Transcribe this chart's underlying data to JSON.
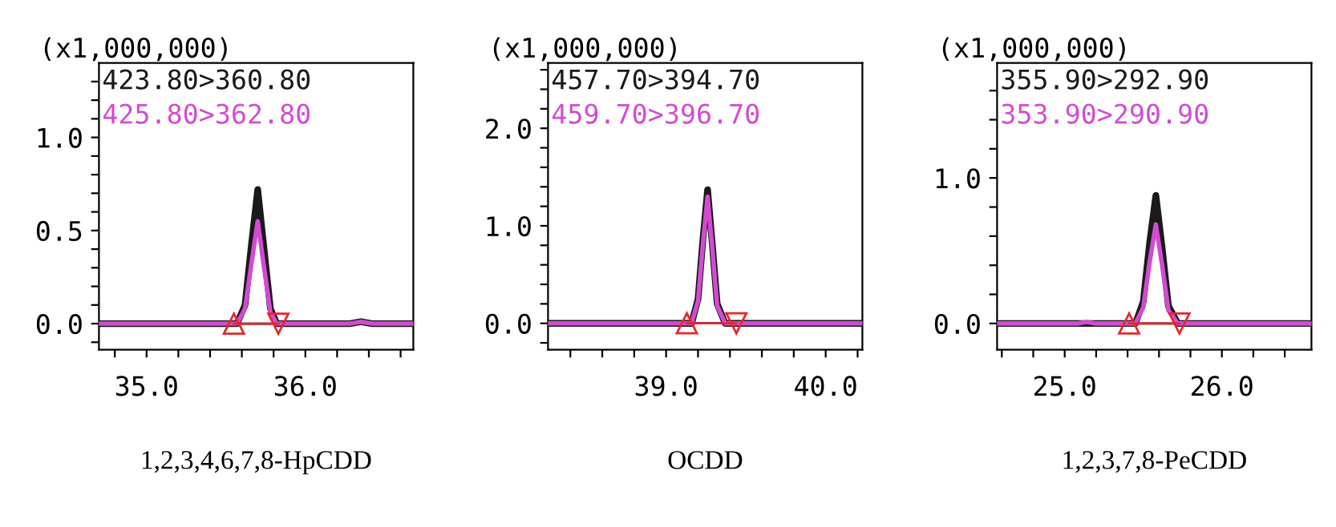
{
  "chart_data": [
    {
      "type": "line",
      "xlabel": "1,2,3,4,6,7,8-HpCDD",
      "ylabel": "(x1,000,000)",
      "legend": "top left",
      "grid": false,
      "xlim": [
        34.7,
        36.68
      ],
      "ylim": [
        -0.14,
        1.4
      ],
      "xticks": [
        {
          "value": 34.8,
          "label": null
        },
        {
          "value": 35.0,
          "label": "35.0"
        },
        {
          "value": 35.2,
          "label": null
        },
        {
          "value": 35.4,
          "label": null
        },
        {
          "value": 35.6,
          "label": null
        },
        {
          "value": 35.8,
          "label": null
        },
        {
          "value": 36.0,
          "label": "36.0"
        },
        {
          "value": 36.2,
          "label": null
        },
        {
          "value": 36.4,
          "label": null
        },
        {
          "value": 36.6,
          "label": null
        }
      ],
      "yticks": [
        {
          "value": -0.1,
          "label": null
        },
        {
          "value": 0.0,
          "label": "0.0"
        },
        {
          "value": 0.1,
          "label": null
        },
        {
          "value": 0.2,
          "label": null
        },
        {
          "value": 0.3,
          "label": null
        },
        {
          "value": 0.4,
          "label": null
        },
        {
          "value": 0.5,
          "label": "0.5"
        },
        {
          "value": 0.6,
          "label": null
        },
        {
          "value": 0.7,
          "label": null
        },
        {
          "value": 0.8,
          "label": null
        },
        {
          "value": 0.9,
          "label": null
        },
        {
          "value": 1.0,
          "label": "1.0"
        },
        {
          "value": 1.1,
          "label": null
        },
        {
          "value": 1.2,
          "label": null
        },
        {
          "value": 1.3,
          "label": null
        }
      ],
      "ref_lines": [
        {
          "axis": "y",
          "value": 0,
          "color": "#000000"
        }
      ],
      "series": [
        {
          "name": "423.80>360.80",
          "color": "#1a1a1a",
          "x": [
            34.7,
            35.5,
            35.57,
            35.62,
            35.66,
            35.7,
            35.74,
            35.78,
            35.82,
            36.28,
            36.35,
            36.42,
            36.68
          ],
          "values": [
            0,
            0,
            0,
            0.1,
            0.42,
            0.72,
            0.4,
            0.08,
            0,
            0,
            0.01,
            0,
            0
          ]
        },
        {
          "name": "425.80>362.80",
          "color": "#d24bd2",
          "x": [
            34.7,
            35.5,
            35.57,
            35.62,
            35.66,
            35.7,
            35.74,
            35.78,
            35.82,
            36.28,
            36.35,
            36.42,
            36.68
          ],
          "values": [
            0,
            0,
            0,
            0.08,
            0.32,
            0.55,
            0.3,
            0.06,
            0,
            0,
            0.01,
            0,
            0
          ]
        },
        {
          "color": "#e8262b",
          "marker": "triangle",
          "x": [
            35.55,
            35.83
          ],
          "values": [
            0,
            0
          ]
        }
      ]
    },
    {
      "type": "line",
      "xlabel": "OCDD",
      "ylabel": "(x1,000,000)",
      "legend": "top left",
      "grid": false,
      "xlim": [
        38.26,
        40.23
      ],
      "ylim": [
        -0.27,
        2.67
      ],
      "xticks": [
        {
          "value": 38.4,
          "label": null
        },
        {
          "value": 38.6,
          "label": null
        },
        {
          "value": 38.8,
          "label": null
        },
        {
          "value": 39.0,
          "label": "39.0"
        },
        {
          "value": 39.2,
          "label": null
        },
        {
          "value": 39.4,
          "label": null
        },
        {
          "value": 39.6,
          "label": null
        },
        {
          "value": 39.8,
          "label": null
        },
        {
          "value": 40.0,
          "label": "40.0"
        },
        {
          "value": 40.2,
          "label": null
        }
      ],
      "yticks": [
        {
          "value": -0.2,
          "label": null
        },
        {
          "value": 0.0,
          "label": "0.0"
        },
        {
          "value": 0.2,
          "label": null
        },
        {
          "value": 0.4,
          "label": null
        },
        {
          "value": 0.6,
          "label": null
        },
        {
          "value": 0.8,
          "label": null
        },
        {
          "value": 1.0,
          "label": "1.0"
        },
        {
          "value": 1.2,
          "label": null
        },
        {
          "value": 1.4,
          "label": null
        },
        {
          "value": 1.6,
          "label": null
        },
        {
          "value": 1.8,
          "label": null
        },
        {
          "value": 2.0,
          "label": "2.0"
        },
        {
          "value": 2.2,
          "label": null
        },
        {
          "value": 2.4,
          "label": null
        },
        {
          "value": 2.6,
          "label": null
        }
      ],
      "ref_lines": [
        {
          "axis": "y",
          "value": 0,
          "color": "#000000"
        }
      ],
      "series": [
        {
          "name": "457.70>394.70",
          "color": "#1a1a1a",
          "x": [
            38.26,
            39.1,
            39.16,
            39.2,
            39.23,
            39.26,
            39.29,
            39.32,
            39.37,
            40.23
          ],
          "values": [
            0,
            0,
            0,
            0.25,
            0.85,
            1.37,
            0.8,
            0.2,
            0,
            0
          ]
        },
        {
          "name": "459.70>396.70",
          "color": "#d24bd2",
          "x": [
            38.26,
            39.1,
            39.16,
            39.2,
            39.23,
            39.26,
            39.29,
            39.32,
            39.37,
            40.23
          ],
          "values": [
            0,
            0,
            0,
            0.23,
            0.8,
            1.3,
            0.76,
            0.18,
            0,
            0
          ]
        },
        {
          "color": "#e8262b",
          "marker": "triangle",
          "x": [
            39.13,
            39.44
          ],
          "values": [
            0,
            0
          ]
        }
      ]
    },
    {
      "type": "line",
      "xlabel": "1,2,3,7,8-PeCDD",
      "ylabel": "(x1,000,000)",
      "legend": "top left",
      "grid": false,
      "xlim": [
        24.57,
        26.57
      ],
      "ylim": [
        -0.18,
        1.79
      ],
      "xticks": [
        {
          "value": 24.6,
          "label": null
        },
        {
          "value": 24.8,
          "label": null
        },
        {
          "value": 25.0,
          "label": "25.0"
        },
        {
          "value": 25.2,
          "label": null
        },
        {
          "value": 25.4,
          "label": null
        },
        {
          "value": 25.6,
          "label": null
        },
        {
          "value": 25.8,
          "label": null
        },
        {
          "value": 26.0,
          "label": "26.0"
        },
        {
          "value": 26.2,
          "label": null
        },
        {
          "value": 26.4,
          "label": null
        }
      ],
      "yticks": [
        {
          "value": 0.0,
          "label": "0.0"
        },
        {
          "value": 0.2,
          "label": null
        },
        {
          "value": 0.4,
          "label": null
        },
        {
          "value": 0.6,
          "label": null
        },
        {
          "value": 0.8,
          "label": null
        },
        {
          "value": 1.0,
          "label": "1.0"
        },
        {
          "value": 1.2,
          "label": null
        },
        {
          "value": 1.4,
          "label": null
        },
        {
          "value": 1.6,
          "label": null
        }
      ],
      "ref_lines": [
        {
          "axis": "y",
          "value": 0,
          "color": "#000000"
        }
      ],
      "series": [
        {
          "name": "355.90>292.90",
          "color": "#1a1a1a",
          "x": [
            24.57,
            25.38,
            25.45,
            25.5,
            25.54,
            25.58,
            25.62,
            25.66,
            25.72,
            26.57
          ],
          "values": [
            0,
            0,
            0,
            0.15,
            0.55,
            0.88,
            0.52,
            0.12,
            0,
            0
          ]
        },
        {
          "name": "353.90>290.90",
          "color": "#d24bd2",
          "x": [
            24.57,
            25.08,
            25.14,
            25.2,
            25.38,
            25.45,
            25.5,
            25.54,
            25.58,
            25.62,
            25.66,
            25.72,
            26.57
          ],
          "values": [
            0,
            0,
            0.01,
            0,
            0,
            0,
            0.11,
            0.42,
            0.68,
            0.4,
            0.09,
            0,
            0
          ]
        },
        {
          "color": "#e8262b",
          "marker": "triangle",
          "x": [
            25.41,
            25.73
          ],
          "values": [
            0,
            0
          ]
        }
      ]
    }
  ]
}
